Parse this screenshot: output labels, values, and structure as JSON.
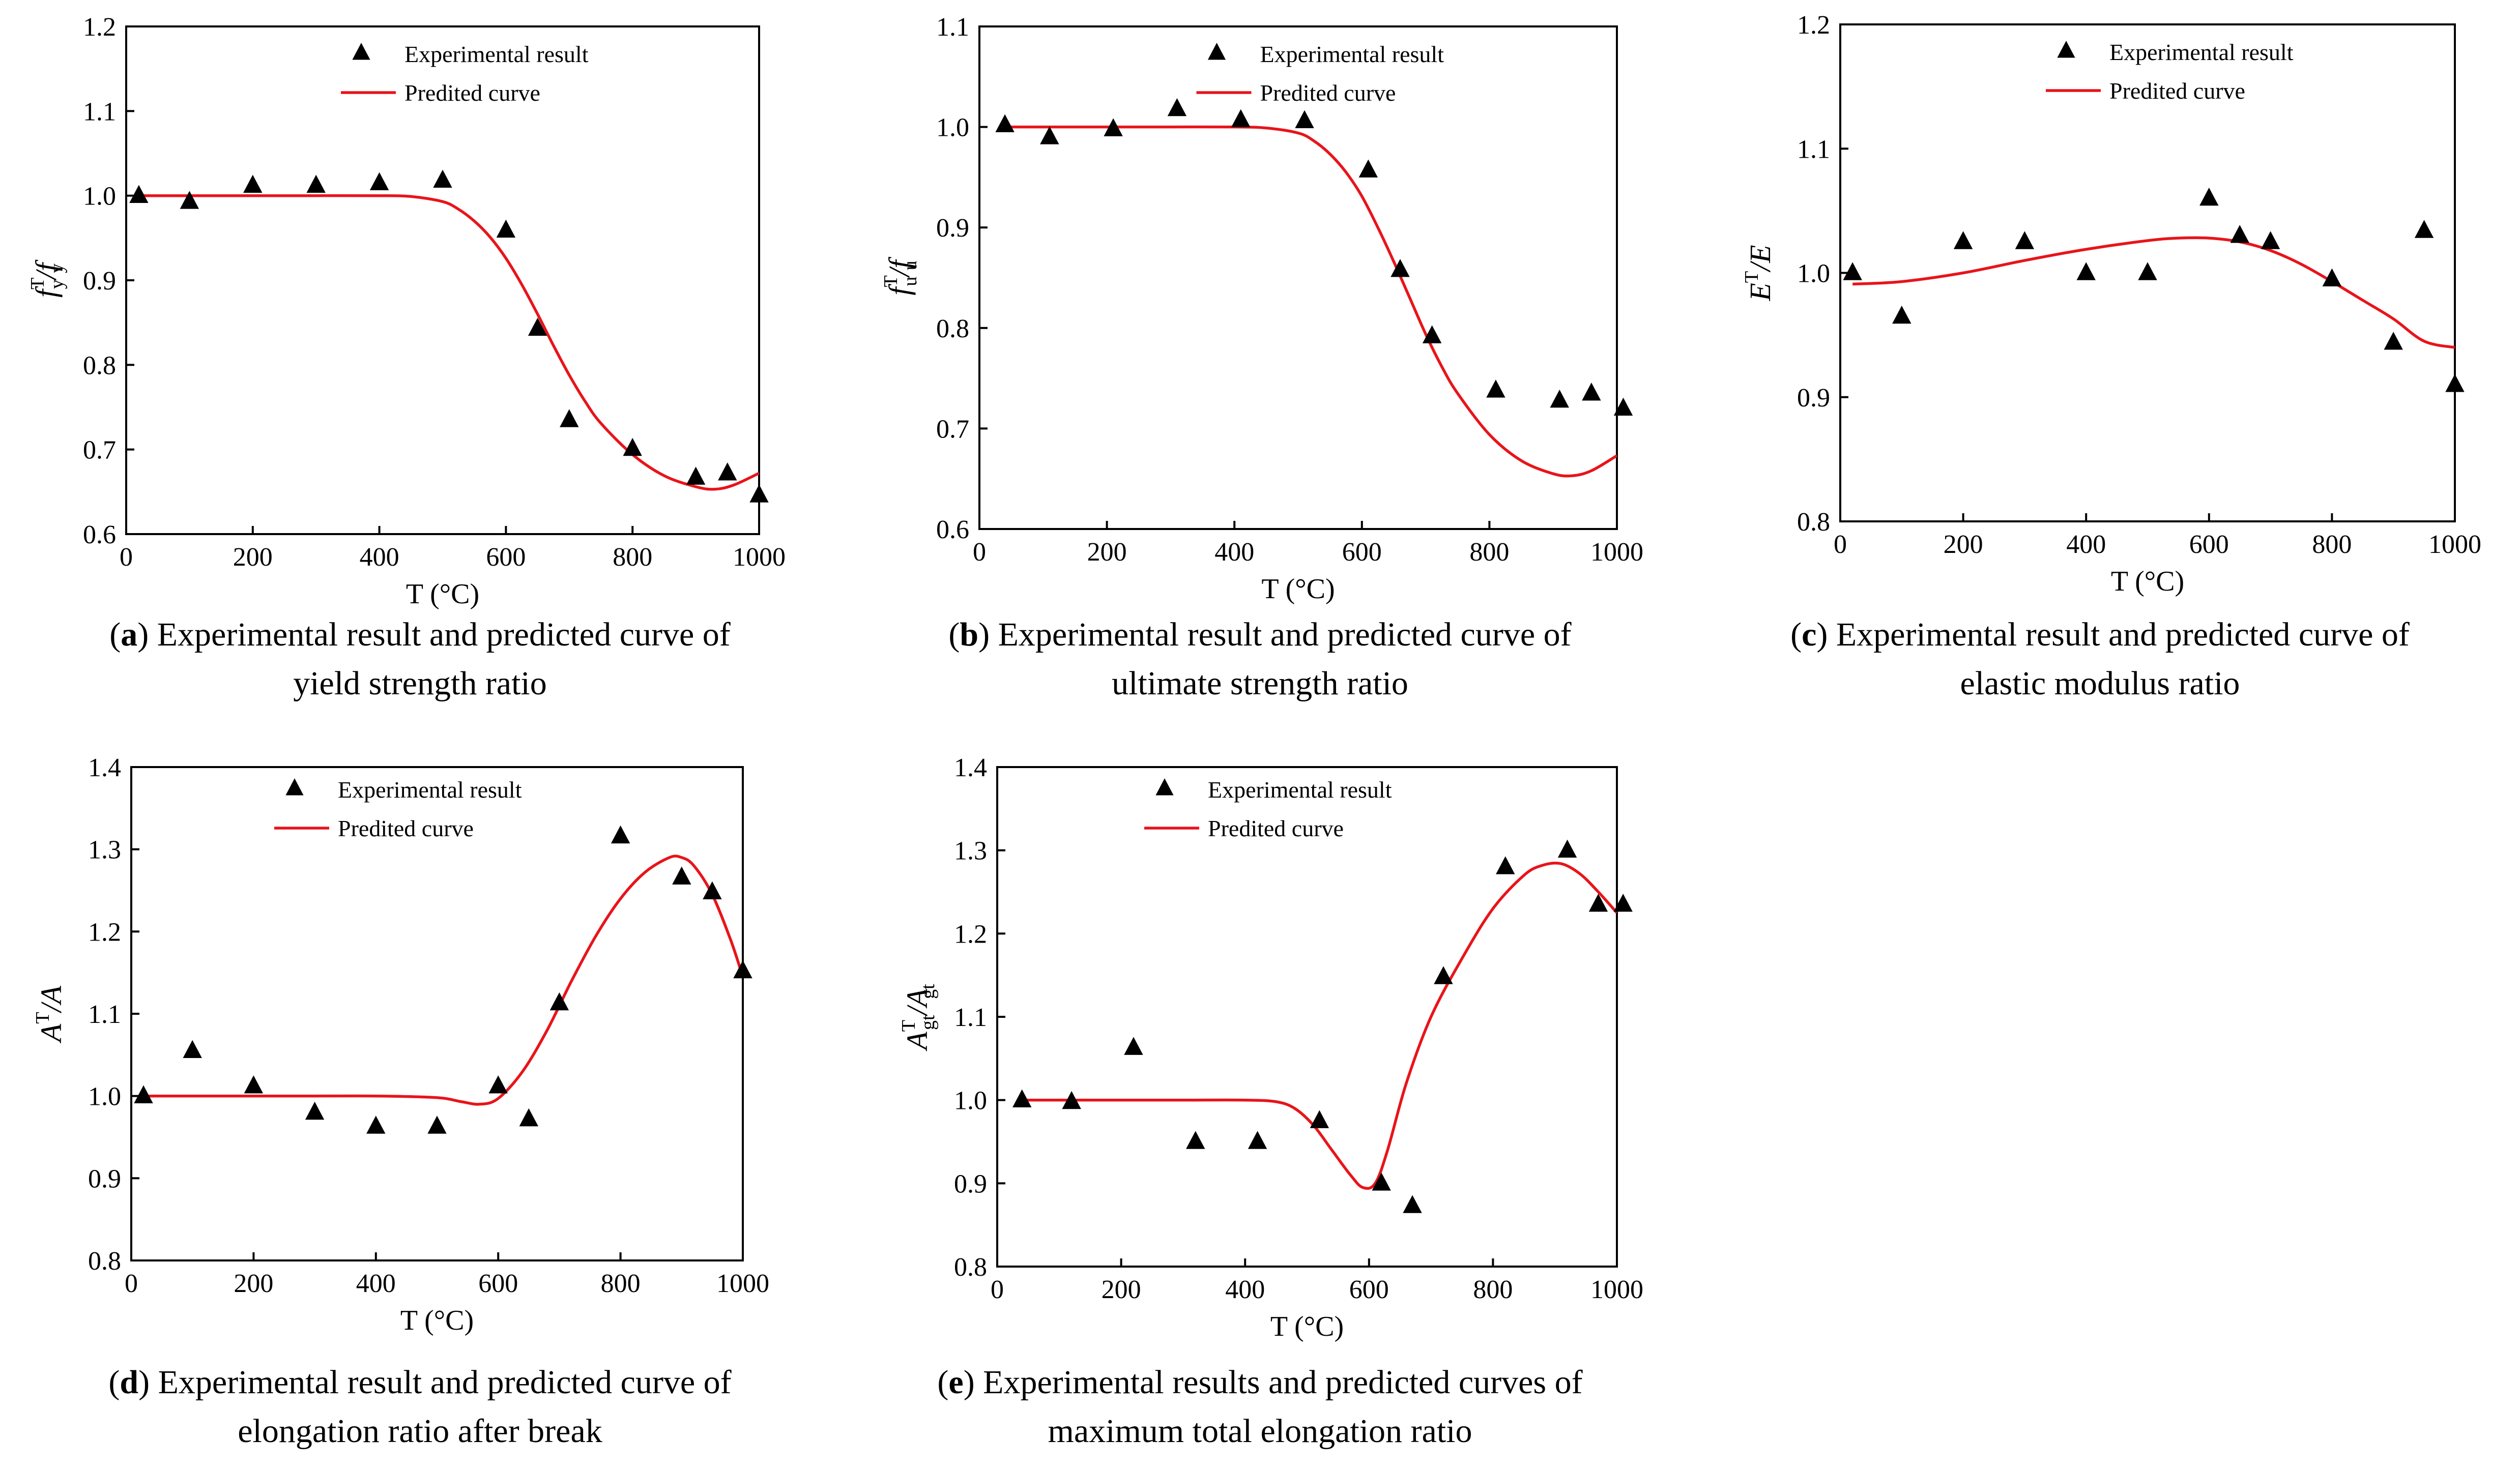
{
  "figure": {
    "series_names": {
      "experimental": "Experimental result",
      "predicted": "Predited curve"
    },
    "xlabel": "T (°C)",
    "colors": {
      "curve": "#e8141a",
      "marker": "#000000",
      "axis": "#000000"
    }
  },
  "chart_data": [
    {
      "id": "a",
      "type": "scatter",
      "ylabel_main": "f",
      "ylabel_sup": "T",
      "ylabel_sub": "y",
      "ylabel_tail": "/f",
      "ylabel_tail_sub": "y",
      "xlim": [
        0,
        1000
      ],
      "ylim": [
        0.6,
        1.2
      ],
      "xticks": [
        0,
        200,
        400,
        600,
        800,
        1000
      ],
      "yticks": [
        0.6,
        0.7,
        0.8,
        0.9,
        1.0,
        1.1,
        1.2
      ],
      "ytick_labels": [
        "0.6",
        "0.7",
        "0.8",
        "0.9",
        "1.0",
        "1.1",
        "1.2"
      ],
      "legend_entries": [
        "Experimental result",
        "Predited curve"
      ],
      "series": [
        {
          "name": "Experimental result",
          "x": [
            20,
            100,
            200,
            300,
            400,
            500,
            600,
            650,
            700,
            800,
            900,
            950,
            1000
          ],
          "y": [
            1.0,
            0.993,
            1.012,
            1.012,
            1.015,
            1.018,
            0.959,
            0.843,
            0.735,
            0.701,
            0.667,
            0.672,
            0.646
          ]
        },
        {
          "name": "Predited curve",
          "x": [
            20,
            100,
            200,
            300,
            400,
            450,
            500,
            525,
            550,
            575,
            600,
            625,
            650,
            675,
            700,
            725,
            750,
            800,
            850,
            900,
            930,
            960,
            1000
          ],
          "y": [
            1.0,
            1.0,
            1.0,
            1.0,
            1.0,
            0.999,
            0.993,
            0.984,
            0.97,
            0.951,
            0.926,
            0.895,
            0.86,
            0.823,
            0.788,
            0.757,
            0.731,
            0.694,
            0.669,
            0.656,
            0.653,
            0.658,
            0.672
          ]
        }
      ],
      "caption_letter": "a",
      "caption_line1": " Experimental result and predicted curve of",
      "caption_line2": "yield strength ratio"
    },
    {
      "id": "b",
      "type": "scatter",
      "ylabel_main": "f",
      "ylabel_sup": "T",
      "ylabel_sub": "u",
      "ylabel_tail": "/f",
      "ylabel_tail_sub": "u",
      "xlim": [
        0,
        1000
      ],
      "ylim": [
        0.6,
        1.1
      ],
      "xticks": [
        0,
        200,
        400,
        600,
        800,
        1000
      ],
      "yticks": [
        0.6,
        0.7,
        0.8,
        0.9,
        1.0,
        1.1
      ],
      "ytick_labels": [
        "0.6",
        "0.7",
        "0.8",
        "0.9",
        "1.0",
        "1.1"
      ],
      "legend_entries": [
        "Experimental result",
        "Predited curve"
      ],
      "series": [
        {
          "name": "Experimental result",
          "x": [
            40,
            110,
            210,
            310,
            410,
            510,
            610,
            660,
            710,
            810,
            910,
            960,
            1010
          ],
          "y": [
            1.002,
            0.99,
            0.998,
            1.018,
            1.007,
            1.006,
            0.957,
            0.858,
            0.792,
            0.738,
            0.728,
            0.735,
            0.72
          ]
        },
        {
          "name": "Predited curve",
          "x": [
            40,
            100,
            200,
            300,
            400,
            450,
            500,
            525,
            550,
            575,
            600,
            625,
            650,
            675,
            700,
            725,
            750,
            800,
            850,
            900,
            930,
            960,
            1000
          ],
          "y": [
            1.0,
            1.0,
            1.0,
            1.0,
            1.0,
            0.999,
            0.994,
            0.986,
            0.973,
            0.955,
            0.931,
            0.9,
            0.866,
            0.83,
            0.794,
            0.762,
            0.735,
            0.694,
            0.668,
            0.655,
            0.653,
            0.658,
            0.673
          ]
        }
      ],
      "caption_letter": "b",
      "caption_line1": " Experimental result and predicted curve of",
      "caption_line2": "ultimate strength ratio"
    },
    {
      "id": "c",
      "type": "scatter",
      "ylabel_main": "E",
      "ylabel_sup": "T",
      "ylabel_sub": "",
      "ylabel_tail": "/E",
      "ylabel_tail_sub": "",
      "xlim": [
        0,
        1000
      ],
      "ylim": [
        0.8,
        1.2
      ],
      "xticks": [
        0,
        200,
        400,
        600,
        800,
        1000
      ],
      "yticks": [
        0.8,
        0.9,
        1.0,
        1.1,
        1.2
      ],
      "ytick_labels": [
        "0.8",
        "0.9",
        "1.0",
        "1.1",
        "1.2"
      ],
      "legend_entries": [
        "Experimental result",
        "Predited curve"
      ],
      "series": [
        {
          "name": "Experimental result",
          "x": [
            20,
            100,
            200,
            300,
            400,
            500,
            600,
            650,
            700,
            800,
            900,
            950,
            1000
          ],
          "y": [
            1.0,
            0.965,
            1.025,
            1.025,
            1.0,
            1.0,
            1.06,
            1.03,
            1.025,
            0.995,
            0.944,
            1.034,
            0.91
          ]
        },
        {
          "name": "Predited curve",
          "x": [
            20,
            100,
            200,
            300,
            400,
            500,
            550,
            600,
            650,
            700,
            750,
            800,
            850,
            900,
            950,
            1000
          ],
          "y": [
            0.991,
            0.993,
            1.0,
            1.01,
            1.019,
            1.026,
            1.028,
            1.028,
            1.025,
            1.018,
            1.007,
            0.993,
            0.978,
            0.963,
            0.945,
            0.94
          ]
        }
      ],
      "caption_letter": "c",
      "caption_line1": " Experimental result and predicted curve of",
      "caption_line2": "elastic modulus ratio"
    },
    {
      "id": "d",
      "type": "scatter",
      "ylabel_main": "A",
      "ylabel_sup": "T",
      "ylabel_sub": "",
      "ylabel_tail": "/A",
      "ylabel_tail_sub": "",
      "xlim": [
        0,
        1000
      ],
      "ylim": [
        0.8,
        1.4
      ],
      "xticks": [
        0,
        200,
        400,
        600,
        800,
        1000
      ],
      "yticks": [
        0.8,
        0.9,
        1.0,
        1.1,
        1.2,
        1.3,
        1.4
      ],
      "ytick_labels": [
        "0.8",
        "0.9",
        "1.0",
        "1.1",
        "1.2",
        "1.3",
        "1.4"
      ],
      "legend_entries": [
        "Experimental result",
        "Predited curve"
      ],
      "series": [
        {
          "name": "Experimental result",
          "x": [
            20,
            100,
            200,
            300,
            400,
            500,
            600,
            650,
            700,
            800,
            900,
            950,
            1000
          ],
          "y": [
            1.0,
            1.055,
            1.012,
            0.98,
            0.963,
            0.963,
            1.012,
            0.972,
            1.113,
            1.316,
            1.266,
            1.248,
            1.152
          ]
        },
        {
          "name": "Predited curve",
          "x": [
            20,
            100,
            200,
            300,
            400,
            500,
            540,
            570,
            600,
            640,
            680,
            720,
            760,
            800,
            840,
            880,
            900,
            920,
            950,
            980,
            1000
          ],
          "y": [
            1.0,
            1.0,
            1.0,
            1.0,
            1.0,
            0.998,
            0.993,
            0.99,
            0.997,
            1.03,
            1.08,
            1.14,
            1.195,
            1.24,
            1.272,
            1.29,
            1.29,
            1.28,
            1.245,
            1.19,
            1.145
          ]
        }
      ],
      "caption_letter": "d",
      "caption_line1": " Experimental result and predicted curve of",
      "caption_line2": "elongation ratio after break"
    },
    {
      "id": "e",
      "type": "scatter",
      "ylabel_main": "A",
      "ylabel_sup": "T",
      "ylabel_sub": "gt",
      "ylabel_tail": "/A",
      "ylabel_tail_sub": "gt",
      "xlim": [
        0,
        1000
      ],
      "ylim": [
        0.8,
        1.4
      ],
      "xticks": [
        0,
        200,
        400,
        600,
        800,
        1000
      ],
      "yticks": [
        0.8,
        0.9,
        1.0,
        1.1,
        1.2,
        1.3,
        1.4
      ],
      "ytick_labels": [
        "0.8",
        "0.9",
        "1.0",
        "1.1",
        "1.2",
        "1.3",
        "1.4"
      ],
      "legend_entries": [
        "Experimental result",
        "Predited curve"
      ],
      "series": [
        {
          "name": "Experimental result",
          "x": [
            40,
            120,
            220,
            320,
            420,
            520,
            620,
            670,
            720,
            820,
            920,
            970,
            1010
          ],
          "y": [
            1.0,
            0.998,
            1.063,
            0.95,
            0.95,
            0.975,
            0.9,
            0.873,
            1.148,
            1.28,
            1.3,
            1.235,
            1.235
          ]
        },
        {
          "name": "Predited curve",
          "x": [
            40,
            100,
            200,
            300,
            400,
            450,
            480,
            510,
            540,
            570,
            590,
            610,
            630,
            660,
            700,
            750,
            800,
            850,
            880,
            910,
            940,
            970,
            1000
          ],
          "y": [
            1.0,
            1.0,
            1.0,
            1.0,
            1.0,
            0.998,
            0.99,
            0.97,
            0.94,
            0.91,
            0.895,
            0.9,
            0.94,
            1.02,
            1.1,
            1.17,
            1.23,
            1.27,
            1.282,
            1.284,
            1.272,
            1.25,
            1.225
          ]
        }
      ],
      "caption_letter": "e",
      "caption_line1": " Experimental results and predicted curves of",
      "caption_line2": "maximum total elongation ratio"
    }
  ]
}
